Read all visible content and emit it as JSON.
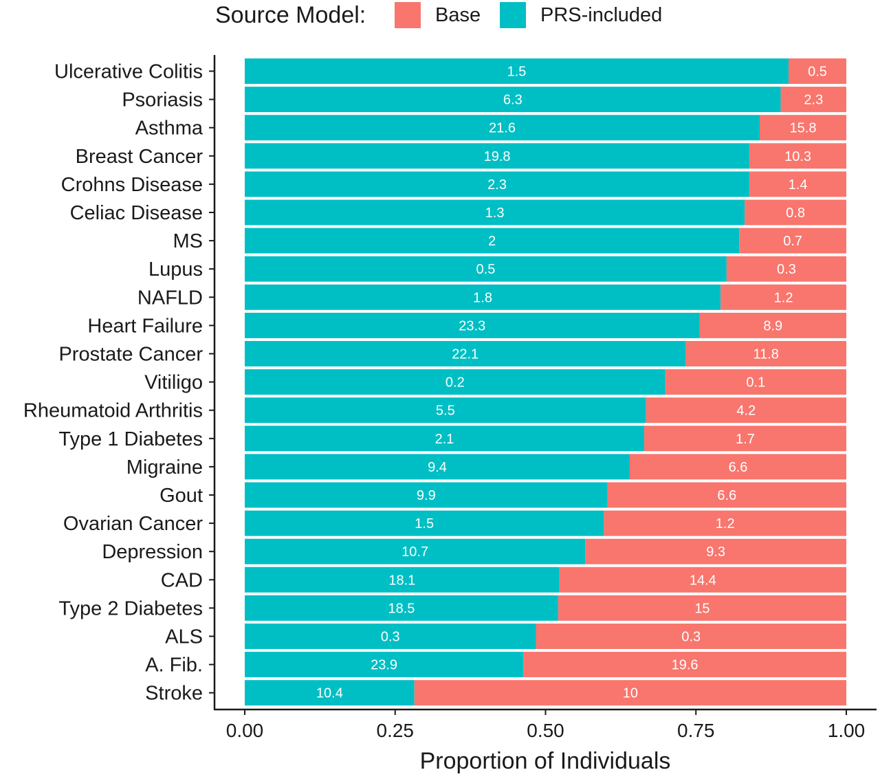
{
  "chart_data": {
    "type": "bar",
    "orientation": "horizontal",
    "stacked": true,
    "normalized": true,
    "title": "",
    "xlabel": "Proportion of Individuals",
    "ylabel": "",
    "xlim": [
      0,
      1
    ],
    "x_ticks": [
      "0.00",
      "0.25",
      "0.50",
      "0.75",
      "1.00"
    ],
    "grid": false,
    "legend": {
      "title": "Source Model:",
      "placement": "top",
      "entries": [
        "Base",
        "PRS-included"
      ]
    },
    "colors": {
      "Base": "#F8766D",
      "PRS-included": "#00BFC4"
    },
    "categories": [
      "Ulcerative Colitis",
      "Psoriasis",
      "Asthma",
      "Breast Cancer",
      "Crohns Disease",
      "Celiac Disease",
      "MS",
      "Lupus",
      "NAFLD",
      "Heart Failure",
      "Prostate Cancer",
      "Vitiligo",
      "Rheumatoid Arthritis",
      "Type 1 Diabetes",
      "Migraine",
      "Gout",
      "Ovarian Cancer",
      "Depression",
      "CAD",
      "Type 2 Diabetes",
      "ALS",
      "A. Fib.",
      "Stroke"
    ],
    "series": [
      {
        "name": "PRS-included",
        "proportions": [
          0.904,
          0.891,
          0.856,
          0.839,
          0.839,
          0.831,
          0.822,
          0.801,
          0.791,
          0.756,
          0.733,
          0.699,
          0.667,
          0.664,
          0.64,
          0.603,
          0.597,
          0.566,
          0.523,
          0.521,
          0.484,
          0.463,
          0.282
        ],
        "labels": [
          "1.5",
          "6.3",
          "21.6",
          "19.8",
          "2.3",
          "1.3",
          "2",
          "0.5",
          "1.8",
          "23.3",
          "22.1",
          "0.2",
          "5.5",
          "2.1",
          "9.4",
          "9.9",
          "1.5",
          "10.7",
          "18.1",
          "18.5",
          "0.3",
          "23.9",
          "10.4"
        ]
      },
      {
        "name": "Base",
        "proportions": [
          0.096,
          0.109,
          0.144,
          0.161,
          0.161,
          0.169,
          0.178,
          0.199,
          0.209,
          0.244,
          0.267,
          0.301,
          0.333,
          0.336,
          0.36,
          0.397,
          0.403,
          0.434,
          0.477,
          0.479,
          0.516,
          0.537,
          0.718
        ],
        "labels": [
          "0.5",
          "2.3",
          "15.8",
          "10.3",
          "1.4",
          "0.8",
          "0.7",
          "0.3",
          "1.2",
          "8.9",
          "11.8",
          "0.1",
          "4.2",
          "1.7",
          "6.6",
          "6.6",
          "1.2",
          "9.3",
          "14.4",
          "15",
          "0.3",
          "19.6",
          "10"
        ]
      }
    ]
  }
}
